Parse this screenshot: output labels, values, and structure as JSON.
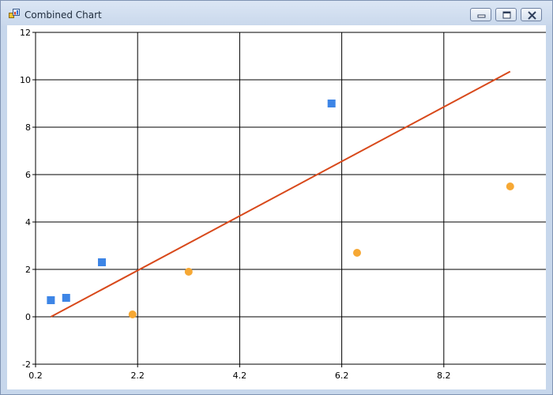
{
  "window": {
    "title": "Combined Chart",
    "buttons": {
      "minimize": "minimize-icon",
      "maximize": "maximize-icon",
      "close": "close-icon"
    }
  },
  "chart_data": {
    "type": "scatter",
    "title": "",
    "xlabel": "",
    "ylabel": "",
    "xlim": [
      0.2,
      10.2
    ],
    "ylim": [
      -2,
      12
    ],
    "x_ticks": [
      0.2,
      2.2,
      4.2,
      6.2,
      8.2
    ],
    "y_ticks": [
      -2,
      0,
      2,
      4,
      6,
      8,
      10,
      12
    ],
    "grid": true,
    "legend": "none",
    "series": [
      {
        "type": "scatter",
        "marker": "square",
        "color": "#3d85e6",
        "points": [
          [
            0.5,
            0.7
          ],
          [
            0.8,
            0.8
          ],
          [
            1.5,
            2.3
          ],
          [
            6.0,
            9.0
          ]
        ]
      },
      {
        "type": "scatter",
        "marker": "circle",
        "color": "#f6a834",
        "points": [
          [
            2.1,
            0.1
          ],
          [
            3.2,
            1.9
          ],
          [
            6.5,
            2.7
          ],
          [
            9.5,
            5.5
          ]
        ]
      },
      {
        "type": "line",
        "color": "#d8491b",
        "points": [
          [
            0.5,
            0.0
          ],
          [
            9.5,
            10.35
          ]
        ]
      }
    ]
  }
}
